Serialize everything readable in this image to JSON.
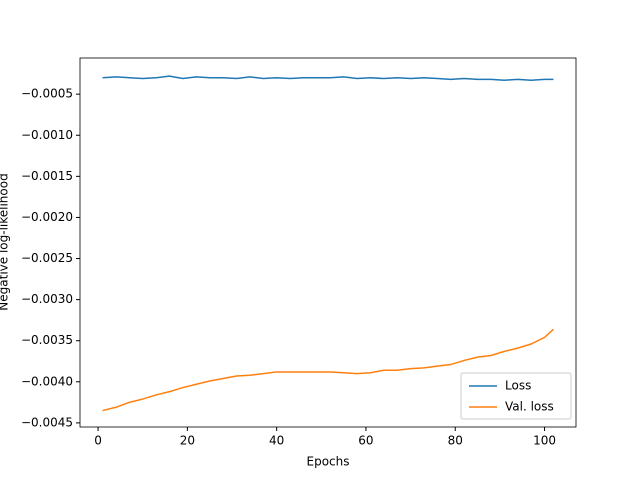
{
  "chart_data": {
    "type": "line",
    "xlabel": "Epochs",
    "ylabel": "Negative log-likelihood",
    "x": [
      1,
      4,
      7,
      10,
      13,
      16,
      19,
      22,
      25,
      28,
      31,
      34,
      37,
      40,
      43,
      46,
      49,
      52,
      55,
      58,
      61,
      64,
      67,
      70,
      73,
      76,
      79,
      82,
      85,
      88,
      91,
      94,
      97,
      100,
      102
    ],
    "series": [
      {
        "name": "Loss",
        "color": "#1f77b4",
        "values": [
          -0.0003,
          -0.00029,
          -0.0003,
          -0.00031,
          -0.0003,
          -0.00028,
          -0.00031,
          -0.00029,
          -0.0003,
          -0.0003,
          -0.00031,
          -0.00029,
          -0.00031,
          -0.0003,
          -0.00031,
          -0.0003,
          -0.0003,
          -0.0003,
          -0.00029,
          -0.00031,
          -0.0003,
          -0.00031,
          -0.0003,
          -0.00031,
          -0.0003,
          -0.00031,
          -0.00032,
          -0.00031,
          -0.00032,
          -0.00032,
          -0.00033,
          -0.00032,
          -0.00033,
          -0.00032,
          -0.00032
        ]
      },
      {
        "name": "Val. loss",
        "color": "#ff7f0e",
        "values": [
          -0.00435,
          -0.00431,
          -0.00425,
          -0.00421,
          -0.00416,
          -0.00412,
          -0.00407,
          -0.00403,
          -0.00399,
          -0.00396,
          -0.00393,
          -0.00392,
          -0.0039,
          -0.00388,
          -0.00388,
          -0.00388,
          -0.00388,
          -0.00388,
          -0.00389,
          -0.0039,
          -0.00389,
          -0.00386,
          -0.00386,
          -0.00384,
          -0.00383,
          -0.00381,
          -0.00379,
          -0.00374,
          -0.0037,
          -0.00368,
          -0.00363,
          -0.00359,
          -0.00354,
          -0.00346,
          -0.00336
        ]
      }
    ],
    "xlim": [
      -4.05,
      107.05
    ],
    "xticks": [
      0,
      20,
      40,
      60,
      80,
      100
    ],
    "ylim": [
      -0.00455,
      -6e-05
    ],
    "yticks": [
      {
        "value": -0.0045,
        "label": "−0.0045"
      },
      {
        "value": -0.004,
        "label": "−0.0040"
      },
      {
        "value": -0.0035,
        "label": "−0.0035"
      },
      {
        "value": -0.003,
        "label": "−0.0030"
      },
      {
        "value": -0.0025,
        "label": "−0.0025"
      },
      {
        "value": -0.002,
        "label": "−0.0020"
      },
      {
        "value": -0.0015,
        "label": "−0.0015"
      },
      {
        "value": -0.001,
        "label": "−0.0010"
      },
      {
        "value": -0.0005,
        "label": "−0.0005"
      }
    ],
    "legend": "lower right",
    "grid": false
  }
}
